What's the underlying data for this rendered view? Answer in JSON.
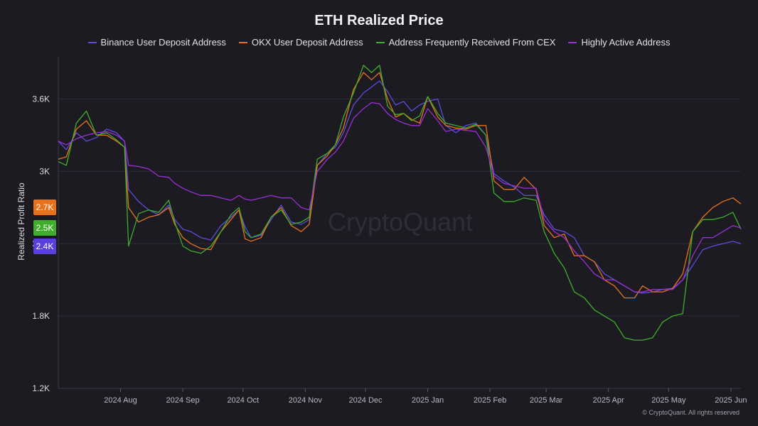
{
  "chart_data": {
    "type": "line",
    "title": "ETH Realized Price",
    "ylabel": "Realized Profit Ratio",
    "xlabel": "",
    "watermark": "CryptoQuant",
    "footer": "© CryptoQuant. All rights reserved",
    "ylim": [
      1200,
      3950
    ],
    "yticks": [
      {
        "value": 1200,
        "label": "1.2K"
      },
      {
        "value": 1800,
        "label": "1.8K"
      },
      {
        "value": 2400,
        "label": "2.4K"
      },
      {
        "value": 3000,
        "label": "3K"
      },
      {
        "value": 3600,
        "label": "3.6K"
      }
    ],
    "x_range": [
      "2024-07-01",
      "2025-06-06"
    ],
    "xticks": [
      {
        "date": "2024-08-01",
        "label": "2024 Aug"
      },
      {
        "date": "2024-09-01",
        "label": "2024 Sep"
      },
      {
        "date": "2024-10-01",
        "label": "2024 Oct"
      },
      {
        "date": "2024-11-01",
        "label": "2024 Nov"
      },
      {
        "date": "2024-12-01",
        "label": "2024 Dec"
      },
      {
        "date": "2025-01-01",
        "label": "2025 Jan"
      },
      {
        "date": "2025-02-01",
        "label": "2025 Feb"
      },
      {
        "date": "2025-03-01",
        "label": "2025 Mar"
      },
      {
        "date": "2025-04-01",
        "label": "2025 Apr"
      },
      {
        "date": "2025-05-01",
        "label": "2025 May"
      },
      {
        "date": "2025-06-01",
        "label": "2025 Jun"
      }
    ],
    "grid": true,
    "legend_position": "top",
    "end_labels": [
      {
        "label": "2.7K",
        "value": 2730,
        "color": "#e8721c"
      },
      {
        "label": "2.5K",
        "value": 2520,
        "color": "#3fae2a"
      },
      {
        "label": "2.4K",
        "value": 2400,
        "color": "#5a3fe0"
      }
    ],
    "series": [
      {
        "name": "Binance User Deposit Address",
        "color": "#5b4de0",
        "x": [
          "2024-07-01",
          "2024-07-05",
          "2024-07-10",
          "2024-07-15",
          "2024-07-20",
          "2024-07-25",
          "2024-07-30",
          "2024-08-03",
          "2024-08-05",
          "2024-08-10",
          "2024-08-15",
          "2024-08-20",
          "2024-08-25",
          "2024-08-28",
          "2024-09-01",
          "2024-09-05",
          "2024-09-10",
          "2024-09-15",
          "2024-09-20",
          "2024-09-25",
          "2024-09-29",
          "2024-10-02",
          "2024-10-05",
          "2024-10-10",
          "2024-10-15",
          "2024-10-20",
          "2024-10-25",
          "2024-10-30",
          "2024-11-03",
          "2024-11-07",
          "2024-11-12",
          "2024-11-16",
          "2024-11-20",
          "2024-11-25",
          "2024-11-30",
          "2024-12-04",
          "2024-12-08",
          "2024-12-12",
          "2024-12-16",
          "2024-12-20",
          "2024-12-24",
          "2024-12-28",
          "2025-01-01",
          "2025-01-06",
          "2025-01-10",
          "2025-01-15",
          "2025-01-20",
          "2025-01-25",
          "2025-01-30",
          "2025-02-03",
          "2025-02-08",
          "2025-02-13",
          "2025-02-18",
          "2025-02-24",
          "2025-02-28",
          "2025-03-05",
          "2025-03-10",
          "2025-03-15",
          "2025-03-20",
          "2025-03-25",
          "2025-03-30",
          "2025-04-04",
          "2025-04-09",
          "2025-04-14",
          "2025-04-18",
          "2025-04-23",
          "2025-04-28",
          "2025-05-03",
          "2025-05-08",
          "2025-05-13",
          "2025-05-18",
          "2025-05-23",
          "2025-05-28",
          "2025-06-02",
          "2025-06-06"
        ],
        "values": [
          3250,
          3180,
          3320,
          3250,
          3280,
          3350,
          3320,
          3250,
          2850,
          2750,
          2680,
          2640,
          2720,
          2600,
          2520,
          2500,
          2450,
          2430,
          2550,
          2620,
          2680,
          2540,
          2450,
          2470,
          2600,
          2720,
          2580,
          2560,
          2600,
          3050,
          3150,
          3200,
          3320,
          3550,
          3650,
          3700,
          3750,
          3660,
          3550,
          3580,
          3500,
          3550,
          3580,
          3600,
          3380,
          3320,
          3380,
          3400,
          3300,
          2980,
          2920,
          2870,
          2800,
          2800,
          2640,
          2520,
          2500,
          2450,
          2300,
          2250,
          2150,
          2100,
          2050,
          2000,
          1990,
          2000,
          2020,
          2030,
          2100,
          2220,
          2350,
          2380,
          2400,
          2420,
          2400
        ]
      },
      {
        "name": "OKX User Deposit Address",
        "color": "#e8721c",
        "x": [
          "2024-07-01",
          "2024-07-05",
          "2024-07-10",
          "2024-07-15",
          "2024-07-20",
          "2024-07-25",
          "2024-07-30",
          "2024-08-03",
          "2024-08-05",
          "2024-08-10",
          "2024-08-15",
          "2024-08-20",
          "2024-08-25",
          "2024-08-28",
          "2024-09-01",
          "2024-09-05",
          "2024-09-10",
          "2024-09-15",
          "2024-09-20",
          "2024-09-25",
          "2024-09-29",
          "2024-10-02",
          "2024-10-05",
          "2024-10-10",
          "2024-10-15",
          "2024-10-20",
          "2024-10-25",
          "2024-10-30",
          "2024-11-03",
          "2024-11-07",
          "2024-11-12",
          "2024-11-16",
          "2024-11-20",
          "2024-11-25",
          "2024-11-30",
          "2024-12-04",
          "2024-12-08",
          "2024-12-12",
          "2024-12-16",
          "2024-12-20",
          "2024-12-24",
          "2024-12-28",
          "2025-01-01",
          "2025-01-06",
          "2025-01-10",
          "2025-01-15",
          "2025-01-20",
          "2025-01-25",
          "2025-01-30",
          "2025-02-03",
          "2025-02-08",
          "2025-02-13",
          "2025-02-18",
          "2025-02-24",
          "2025-02-28",
          "2025-03-05",
          "2025-03-10",
          "2025-03-15",
          "2025-03-20",
          "2025-03-25",
          "2025-03-30",
          "2025-04-04",
          "2025-04-09",
          "2025-04-14",
          "2025-04-18",
          "2025-04-23",
          "2025-04-28",
          "2025-05-03",
          "2025-05-08",
          "2025-05-13",
          "2025-05-18",
          "2025-05-23",
          "2025-05-28",
          "2025-06-02",
          "2025-06-06"
        ],
        "values": [
          3100,
          3120,
          3350,
          3420,
          3300,
          3300,
          3250,
          3200,
          2700,
          2580,
          2620,
          2640,
          2700,
          2560,
          2450,
          2400,
          2360,
          2350,
          2500,
          2600,
          2680,
          2440,
          2420,
          2450,
          2620,
          2700,
          2550,
          2500,
          2560,
          3050,
          3130,
          3220,
          3360,
          3680,
          3820,
          3760,
          3820,
          3600,
          3450,
          3480,
          3430,
          3400,
          3620,
          3450,
          3380,
          3360,
          3350,
          3380,
          3380,
          2920,
          2850,
          2850,
          2950,
          2850,
          2550,
          2450,
          2480,
          2300,
          2300,
          2250,
          2100,
          2050,
          1950,
          1950,
          2050,
          2000,
          2000,
          2030,
          2150,
          2500,
          2620,
          2700,
          2750,
          2780,
          2730
        ]
      },
      {
        "name": "Address Frequently Received From CEX",
        "color": "#3fae2a",
        "x": [
          "2024-07-01",
          "2024-07-05",
          "2024-07-10",
          "2024-07-15",
          "2024-07-20",
          "2024-07-25",
          "2024-07-30",
          "2024-08-03",
          "2024-08-05",
          "2024-08-10",
          "2024-08-15",
          "2024-08-20",
          "2024-08-25",
          "2024-08-28",
          "2024-09-01",
          "2024-09-05",
          "2024-09-10",
          "2024-09-15",
          "2024-09-20",
          "2024-09-25",
          "2024-09-29",
          "2024-10-02",
          "2024-10-05",
          "2024-10-10",
          "2024-10-15",
          "2024-10-20",
          "2024-10-25",
          "2024-10-30",
          "2024-11-03",
          "2024-11-07",
          "2024-11-12",
          "2024-11-16",
          "2024-11-20",
          "2024-11-25",
          "2024-11-30",
          "2024-12-04",
          "2024-12-08",
          "2024-12-12",
          "2024-12-16",
          "2024-12-20",
          "2024-12-24",
          "2024-12-28",
          "2025-01-01",
          "2025-01-06",
          "2025-01-10",
          "2025-01-15",
          "2025-01-20",
          "2025-01-25",
          "2025-01-30",
          "2025-02-03",
          "2025-02-08",
          "2025-02-13",
          "2025-02-18",
          "2025-02-24",
          "2025-02-28",
          "2025-03-05",
          "2025-03-10",
          "2025-03-15",
          "2025-03-20",
          "2025-03-25",
          "2025-03-30",
          "2025-04-04",
          "2025-04-09",
          "2025-04-14",
          "2025-04-18",
          "2025-04-23",
          "2025-04-28",
          "2025-05-03",
          "2025-05-08",
          "2025-05-13",
          "2025-05-18",
          "2025-05-23",
          "2025-05-28",
          "2025-06-02",
          "2025-06-06"
        ],
        "values": [
          3080,
          3050,
          3400,
          3500,
          3300,
          3320,
          3260,
          3200,
          2380,
          2650,
          2680,
          2660,
          2760,
          2580,
          2380,
          2340,
          2320,
          2380,
          2500,
          2640,
          2700,
          2500,
          2450,
          2480,
          2620,
          2680,
          2560,
          2580,
          2620,
          3100,
          3150,
          3220,
          3450,
          3650,
          3880,
          3820,
          3880,
          3540,
          3470,
          3480,
          3420,
          3460,
          3620,
          3480,
          3400,
          3380,
          3360,
          3390,
          3300,
          2820,
          2750,
          2750,
          2780,
          2760,
          2500,
          2320,
          2200,
          2000,
          1950,
          1850,
          1800,
          1750,
          1620,
          1600,
          1600,
          1620,
          1750,
          1800,
          1820,
          2500,
          2600,
          2600,
          2620,
          2660,
          2520
        ]
      },
      {
        "name": "Highly Active Address",
        "color": "#9b2fd6",
        "x": [
          "2024-07-01",
          "2024-07-05",
          "2024-07-10",
          "2024-07-15",
          "2024-07-20",
          "2024-07-25",
          "2024-07-30",
          "2024-08-03",
          "2024-08-05",
          "2024-08-10",
          "2024-08-15",
          "2024-08-20",
          "2024-08-25",
          "2024-08-28",
          "2024-09-01",
          "2024-09-05",
          "2024-09-10",
          "2024-09-15",
          "2024-09-20",
          "2024-09-25",
          "2024-09-29",
          "2024-10-02",
          "2024-10-05",
          "2024-10-10",
          "2024-10-15",
          "2024-10-20",
          "2024-10-25",
          "2024-10-30",
          "2024-11-03",
          "2024-11-07",
          "2024-11-12",
          "2024-11-16",
          "2024-11-20",
          "2024-11-25",
          "2024-11-30",
          "2024-12-04",
          "2024-12-08",
          "2024-12-12",
          "2024-12-16",
          "2024-12-20",
          "2024-12-24",
          "2024-12-28",
          "2025-01-01",
          "2025-01-06",
          "2025-01-10",
          "2025-01-15",
          "2025-01-20",
          "2025-01-25",
          "2025-01-30",
          "2025-02-03",
          "2025-02-08",
          "2025-02-13",
          "2025-02-18",
          "2025-02-24",
          "2025-02-28",
          "2025-03-05",
          "2025-03-10",
          "2025-03-15",
          "2025-03-20",
          "2025-03-25",
          "2025-03-30",
          "2025-04-04",
          "2025-04-09",
          "2025-04-14",
          "2025-04-18",
          "2025-04-23",
          "2025-04-28",
          "2025-05-03",
          "2025-05-08",
          "2025-05-13",
          "2025-05-18",
          "2025-05-23",
          "2025-05-28",
          "2025-06-02",
          "2025-06-06"
        ],
        "values": [
          3250,
          3220,
          3270,
          3300,
          3320,
          3330,
          3300,
          3250,
          3050,
          3040,
          3020,
          2960,
          2950,
          2900,
          2860,
          2830,
          2800,
          2800,
          2780,
          2760,
          2800,
          2770,
          2760,
          2780,
          2800,
          2780,
          2780,
          2700,
          2680,
          3000,
          3100,
          3160,
          3250,
          3440,
          3520,
          3570,
          3560,
          3480,
          3430,
          3400,
          3380,
          3380,
          3520,
          3420,
          3330,
          3350,
          3340,
          3330,
          3200,
          2960,
          2900,
          2880,
          2860,
          2860,
          2600,
          2500,
          2450,
          2340,
          2250,
          2150,
          2100,
          2100,
          2050,
          2000,
          2000,
          2020,
          2020,
          2020,
          2100,
          2300,
          2450,
          2450,
          2500,
          2550,
          2530
        ]
      }
    ]
  }
}
